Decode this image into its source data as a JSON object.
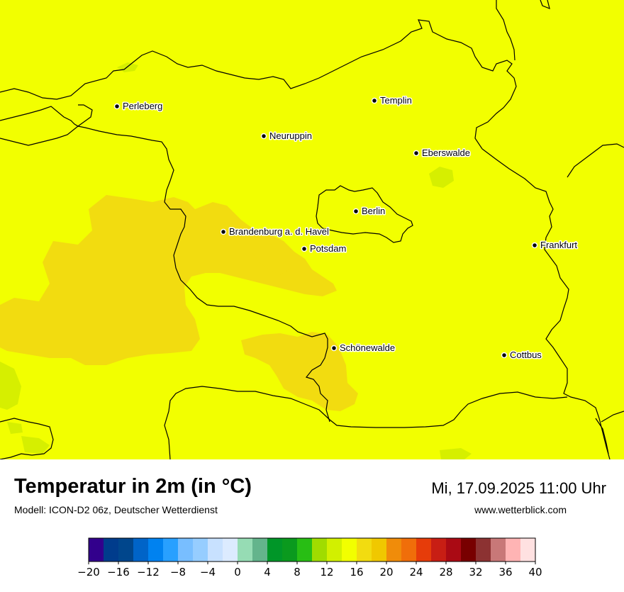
{
  "title": "Temperatur in 2m (in °C)",
  "subtitle": "Modell: ICON-D2 06z, Deutscher Wetterdienst",
  "datetime": "Mi, 17.09.2025 11:00 Uhr",
  "website": "www.wetterblick.com",
  "colors": {
    "map_base": "#f2ff00",
    "warm_region": "#f2dc10",
    "cool_region": "#d6ef00",
    "border": "#000000"
  },
  "cities": [
    {
      "name": "Perleberg"
    },
    {
      "name": "Templin"
    },
    {
      "name": "Neuruppin"
    },
    {
      "name": "Eberswalde"
    },
    {
      "name": "Berlin"
    },
    {
      "name": "Brandenburg a. d. Havel"
    },
    {
      "name": "Potsdam"
    },
    {
      "name": "Frankfurt"
    },
    {
      "name": "Schönewalde"
    },
    {
      "name": "Cottbus"
    }
  ],
  "legend": {
    "min": -20,
    "max": 40,
    "step": 2,
    "tick_labels": [
      "−20",
      "−16",
      "−12",
      "−8",
      "−4",
      "0",
      "4",
      "8",
      "12",
      "16",
      "20",
      "24",
      "28",
      "32",
      "36",
      "40"
    ],
    "colors": [
      "#32008c",
      "#003c8c",
      "#00468c",
      "#0064c8",
      "#0082f0",
      "#28a0ff",
      "#78beff",
      "#96cdff",
      "#c8e1ff",
      "#dcebff",
      "#96dcb4",
      "#64b48c",
      "#009628",
      "#0a9a1e",
      "#28be14",
      "#a0dc00",
      "#d2f000",
      "#f2ff00",
      "#f2dc10",
      "#f0c800",
      "#f08c0a",
      "#f06e0a",
      "#e63c0a",
      "#c81e14",
      "#aa0a14",
      "#780000",
      "#8c3232",
      "#c87878",
      "#ffb4b4",
      "#ffe1e1"
    ]
  }
}
